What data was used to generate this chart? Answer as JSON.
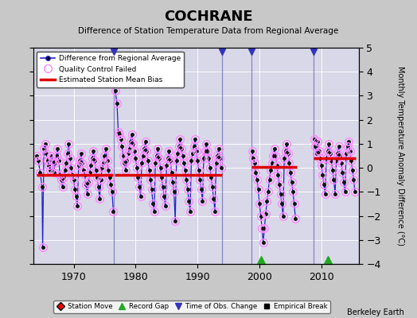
{
  "title": "COCHRANE",
  "subtitle": "Difference of Station Temperature Data from Regional Average",
  "ylabel": "Monthly Temperature Anomaly Difference (°C)",
  "credit": "Berkeley Earth",
  "ylim": [
    -4,
    5
  ],
  "xlim": [
    1963.5,
    2016
  ],
  "xticks": [
    1970,
    1980,
    1990,
    2000,
    2010
  ],
  "line_color": "#2222cc",
  "dot_color": "#111111",
  "qc_color": "#ff88ff",
  "bias_color": "#dd0000",
  "vline_color": "#8888cc",
  "fig_bg": "#c8c8c8",
  "plot_bg": "#d8d8e8",
  "segments": [
    {
      "xstart": 1964.0,
      "xend": 1976.4,
      "bias": -0.3,
      "data_x": [
        1964.0,
        1964.3,
        1964.6,
        1964.9,
        1965.0,
        1965.2,
        1965.4,
        1965.6,
        1965.8,
        1966.0,
        1966.2,
        1966.4,
        1966.6,
        1966.8,
        1967.0,
        1967.2,
        1967.4,
        1967.6,
        1967.8,
        1968.0,
        1968.2,
        1968.4,
        1968.6,
        1968.8,
        1969.0,
        1969.2,
        1969.4,
        1969.6,
        1969.8,
        1970.0,
        1970.2,
        1970.4,
        1970.6,
        1970.8,
        1971.0,
        1971.2,
        1971.4,
        1971.6,
        1971.8,
        1972.0,
        1972.2,
        1972.4,
        1972.6,
        1972.8,
        1973.0,
        1973.2,
        1973.4,
        1973.6,
        1973.8,
        1974.0,
        1974.2,
        1974.4,
        1974.6,
        1974.8,
        1975.0,
        1975.2,
        1975.4,
        1975.6,
        1975.8,
        1976.0,
        1976.2,
        1976.4
      ],
      "data_y": [
        0.5,
        0.3,
        -0.2,
        -0.8,
        -3.3,
        0.8,
        1.0,
        0.6,
        0.3,
        0.1,
        -0.1,
        0.5,
        0.3,
        -0.2,
        0.2,
        0.5,
        0.8,
        0.3,
        -0.3,
        -0.5,
        -0.8,
        -0.4,
        -0.1,
        0.2,
        0.6,
        1.0,
        0.4,
        0.0,
        -0.3,
        -0.5,
        -0.9,
        -1.2,
        -1.6,
        0.1,
        0.3,
        0.6,
        0.2,
        -0.1,
        -0.3,
        -0.7,
        -1.1,
        -0.6,
        -0.2,
        0.1,
        0.4,
        0.7,
        0.3,
        -0.1,
        -0.4,
        -0.8,
        -1.3,
        -0.5,
        -0.0,
        0.2,
        0.5,
        0.8,
        0.3,
        -0.1,
        -0.4,
        -0.7,
        -1.0,
        -1.8
      ],
      "qc_all": true
    },
    {
      "xstart": 1976.6,
      "xend": 1994.0,
      "bias": -0.3,
      "data_x": [
        1976.7,
        1977.0,
        1977.2,
        1977.4,
        1977.6,
        1977.8,
        1978.0,
        1978.2,
        1978.4,
        1978.6,
        1978.8,
        1979.0,
        1979.2,
        1979.4,
        1979.6,
        1979.8,
        1980.0,
        1980.2,
        1980.4,
        1980.6,
        1980.8,
        1981.0,
        1981.2,
        1981.4,
        1981.6,
        1981.8,
        1982.0,
        1982.2,
        1982.4,
        1982.6,
        1982.8,
        1983.0,
        1983.2,
        1983.4,
        1983.6,
        1983.8,
        1984.0,
        1984.2,
        1984.4,
        1984.6,
        1984.8,
        1985.0,
        1985.2,
        1985.4,
        1985.6,
        1985.8,
        1986.0,
        1986.2,
        1986.4,
        1986.6,
        1986.8,
        1987.0,
        1987.2,
        1987.4,
        1987.6,
        1987.8,
        1988.0,
        1988.2,
        1988.4,
        1988.6,
        1988.8,
        1989.0,
        1989.2,
        1989.4,
        1989.6,
        1989.8,
        1990.0,
        1990.2,
        1990.4,
        1990.6,
        1990.8,
        1991.0,
        1991.2,
        1991.4,
        1991.6,
        1991.8,
        1992.0,
        1992.2,
        1992.4,
        1992.6,
        1992.8,
        1993.0,
        1993.2,
        1993.4,
        1993.6,
        1993.8
      ],
      "data_y": [
        3.2,
        2.7,
        1.5,
        1.4,
        1.2,
        0.9,
        0.5,
        0.2,
        -0.1,
        0.3,
        0.6,
        0.8,
        1.1,
        1.4,
        1.0,
        0.7,
        0.4,
        0.0,
        -0.4,
        -0.8,
        -1.2,
        0.2,
        0.5,
        0.8,
        1.1,
        0.7,
        0.3,
        -0.1,
        -0.5,
        -0.9,
        -1.5,
        -1.8,
        0.2,
        0.5,
        0.8,
        0.4,
        0.0,
        -0.4,
        -0.8,
        -1.2,
        -1.6,
        0.1,
        0.4,
        0.7,
        0.3,
        -0.2,
        -0.6,
        -1.0,
        -2.2,
        0.3,
        0.6,
        0.9,
        1.2,
        0.8,
        0.5,
        0.2,
        -0.1,
        -0.5,
        -0.9,
        -1.4,
        -1.8,
        0.3,
        0.6,
        0.9,
        1.2,
        0.7,
        0.3,
        -0.1,
        -0.5,
        -0.9,
        -1.4,
        0.4,
        0.7,
        1.0,
        0.7,
        0.4,
        0.0,
        -0.4,
        -0.8,
        -1.3,
        -1.8,
        0.2,
        0.5,
        0.8,
        0.4,
        0.0
      ],
      "qc_all": true
    },
    {
      "xstart": 1998.7,
      "xend": 2006.0,
      "bias": 0.05,
      "data_x": [
        1998.8,
        1999.0,
        1999.2,
        1999.4,
        1999.6,
        1999.8,
        2000.0,
        2000.2,
        2000.4,
        2000.6,
        2000.8,
        2001.0,
        2001.2,
        2001.4,
        2001.6,
        2001.8,
        2002.0,
        2002.2,
        2002.4,
        2002.6,
        2002.8,
        2003.0,
        2003.2,
        2003.4,
        2003.6,
        2003.8,
        2004.0,
        2004.2,
        2004.4,
        2004.6,
        2004.8,
        2005.0,
        2005.2,
        2005.4,
        2005.6,
        2005.8
      ],
      "data_y": [
        0.7,
        0.4,
        0.2,
        -0.2,
        -0.5,
        -0.9,
        -1.5,
        -2.0,
        -2.5,
        -3.1,
        -2.5,
        -1.9,
        -1.4,
        -1.0,
        -0.5,
        -0.1,
        0.2,
        0.5,
        0.8,
        0.5,
        0.1,
        -0.3,
        -0.7,
        -1.1,
        -1.5,
        -2.0,
        0.4,
        0.7,
        1.0,
        0.6,
        0.2,
        -0.2,
        -0.6,
        -1.0,
        -1.5,
        -2.1
      ],
      "qc_all": true
    },
    {
      "xstart": 2008.7,
      "xend": 2015.5,
      "bias": 0.4,
      "data_x": [
        2008.8,
        2009.0,
        2009.2,
        2009.4,
        2009.6,
        2009.8,
        2010.0,
        2010.2,
        2010.4,
        2010.6,
        2010.8,
        2011.0,
        2011.2,
        2011.4,
        2011.6,
        2011.8,
        2012.0,
        2012.2,
        2012.4,
        2012.6,
        2012.8,
        2013.0,
        2013.2,
        2013.4,
        2013.6,
        2013.8,
        2014.0,
        2014.2,
        2014.4,
        2014.6,
        2014.8,
        2015.0,
        2015.2,
        2015.4
      ],
      "data_y": [
        1.2,
        0.9,
        0.6,
        1.1,
        0.7,
        0.4,
        0.1,
        -0.3,
        -0.7,
        -1.1,
        0.4,
        0.7,
        1.0,
        0.6,
        0.3,
        -0.1,
        -0.5,
        -1.1,
        0.3,
        0.6,
        0.9,
        0.5,
        0.2,
        -0.2,
        -0.6,
        -1.0,
        0.6,
        0.9,
        1.1,
        0.7,
        0.3,
        -0.1,
        -0.5,
        -1.0
      ],
      "qc_all": true
    }
  ],
  "vlines": [
    1976.5,
    1994.0,
    1998.7,
    2008.7
  ],
  "record_gaps": [
    2000.3,
    2011.1
  ],
  "obs_change_lines": [
    1976.5,
    1994.0,
    1998.7,
    2008.7
  ]
}
